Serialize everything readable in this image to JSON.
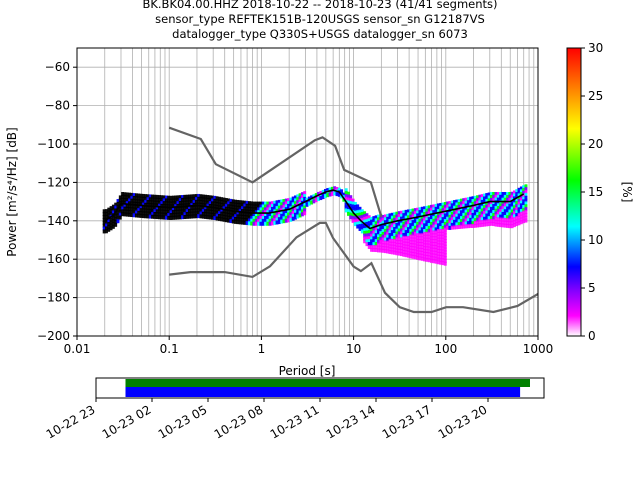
{
  "chart_data": [
    {
      "type": "heatmap",
      "title_lines": [
        "BK.BK04.00.HHZ   2018-10-22 -- 2018-10-23  (41/41 segments)",
        "sensor_type REFTEK151B-120USGS sensor_sn G12187VS",
        "datalogger_type Q330S+USGS datalogger_sn 6073"
      ],
      "xlabel": "Period [s]",
      "ylabel": "Power [m²/s⁴/Hz] [dB]",
      "xscale": "log",
      "xlim": [
        0.01,
        1000
      ],
      "ylim": [
        -200,
        -50
      ],
      "xticks": [
        0.01,
        0.1,
        1,
        10,
        100,
        1000
      ],
      "xtick_labels": [
        "0.01",
        "0.1",
        "1",
        "10",
        "100",
        "1000"
      ],
      "yticks": [
        -200,
        -180,
        -160,
        -140,
        -120,
        -100,
        -80,
        -60
      ],
      "grid": true,
      "colorbar": {
        "label": "[%]",
        "range": [
          0,
          30
        ],
        "ticks": [
          0,
          5,
          10,
          15,
          20,
          25,
          30
        ],
        "colors": [
          "#ffffff",
          "#ff00ff",
          "#8000ff",
          "#0000ff",
          "#00ffff",
          "#00ff00",
          "#ffff00",
          "#ff8000",
          "#ff0000"
        ]
      },
      "nhnm": {
        "x": [
          0.1,
          0.22,
          0.32,
          0.8,
          3.8,
          4.6,
          6.3,
          7.9,
          15.4,
          20
        ],
        "y": [
          -91.5,
          -97.4,
          -110.5,
          -120,
          -98,
          -96.5,
          -101,
          -113.5,
          -120,
          -138
        ]
      },
      "nlnm": {
        "x": [
          0.1,
          0.17,
          0.4,
          0.8,
          1.24,
          2.4,
          4.3,
          5,
          6,
          10,
          12,
          15.6,
          21.9,
          31.6,
          45,
          70,
          101,
          154,
          328,
          600,
          1000
        ],
        "y": [
          -168,
          -166.7,
          -166.7,
          -169.2,
          -163.7,
          -148.6,
          -141.1,
          -141.1,
          -149,
          -163.8,
          -166.2,
          -162.1,
          -177.5,
          -185,
          -187.5,
          -187.5,
          -185,
          -185,
          -187.5,
          -184.4,
          -178.1
        ]
      },
      "median": {
        "x": [
          0.02,
          0.025,
          0.03,
          0.05,
          0.1,
          0.2,
          0.3,
          0.5,
          0.8,
          1.2,
          2,
          3,
          4,
          5,
          6,
          7,
          8,
          10,
          12,
          15,
          20,
          30,
          50,
          100,
          200,
          300,
          500,
          700
        ],
        "y": [
          -140,
          -137,
          -131,
          -132,
          -133,
          -132,
          -133,
          -135,
          -136,
          -136,
          -134,
          -130,
          -127,
          -125,
          -124,
          -125,
          -129,
          -136,
          -140,
          -144,
          -142,
          -140,
          -138,
          -135,
          -132,
          -130,
          -130,
          -126
        ]
      }
    },
    {
      "type": "timeline",
      "tick_labels": [
        "10-22 23",
        "10-23 02",
        "10-23 05",
        "10-23 08",
        "10-23 11",
        "10-23 14",
        "10-23 17",
        "10-23 20"
      ],
      "range_hours": [
        0,
        24
      ],
      "tick_hours": [
        0,
        3,
        6,
        9,
        12,
        15,
        18,
        21
      ],
      "data_coverage": {
        "start_hour": 1.58,
        "end_hour": 23.25,
        "color": "#008000"
      },
      "psd_coverage": {
        "start_hour": 1.58,
        "end_hour": 22.72,
        "color": "#0000ff"
      }
    }
  ]
}
